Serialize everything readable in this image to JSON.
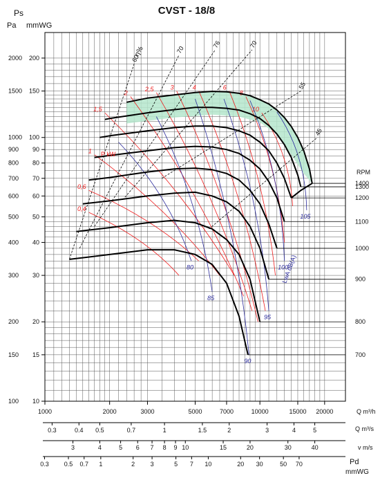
{
  "chart_data": {
    "type": "line",
    "title": "CVST - 18/8",
    "y_units": {
      "ps": "Ps",
      "pa": "Pa",
      "mmwg": "mmWG"
    },
    "y_scale": "log",
    "x_scale": "log",
    "xlim": [
      1000,
      25000
    ],
    "ylim_mmwg": [
      10,
      250
    ],
    "y_ticks_mmwg": [
      "200",
      "150",
      "100",
      "90",
      "80",
      "70",
      "60",
      "50",
      "40",
      "30",
      "20",
      "15",
      "10"
    ],
    "y_ticks_pa": [
      "2000",
      "1500",
      "1000",
      "900",
      "800",
      "700",
      "600",
      "500",
      "400",
      "300",
      "200",
      "150",
      "100"
    ],
    "x_ticks": [
      "1000",
      "2000",
      "3000",
      "5000",
      "7000",
      "10000",
      "15000",
      "20000"
    ],
    "x_unit": "Q m³/h",
    "rpm_label": "RPM",
    "rpm_ticks": [
      "1400",
      "1300",
      "1200",
      "1100",
      "1000",
      "900",
      "800",
      "700"
    ],
    "efficiency_label": "η%",
    "efficiency_values": [
      "60",
      "70",
      "76",
      "70",
      "55",
      "45"
    ],
    "power_label": "P kW",
    "power_values": [
      "0,4",
      "0,6",
      "1",
      "1,5",
      "2",
      "2,5",
      "3",
      "4",
      "6",
      "8",
      "10"
    ],
    "noise_label": "LwA dB(A)",
    "noise_values": [
      "80",
      "85",
      "90",
      "95",
      "100",
      "105"
    ],
    "series": [
      {
        "rpm": 700,
        "points": [
          [
            1300,
            34.5
          ],
          [
            2000,
            36
          ],
          [
            3000,
            37.5
          ],
          [
            4000,
            37.5
          ],
          [
            5000,
            36
          ],
          [
            6000,
            33
          ],
          [
            7000,
            28
          ],
          [
            8000,
            21
          ],
          [
            8800,
            15
          ]
        ]
      },
      {
        "rpm": 800,
        "points": [
          [
            1400,
            44
          ],
          [
            2000,
            45.5
          ],
          [
            3000,
            47.5
          ],
          [
            4000,
            48.5
          ],
          [
            5000,
            47.5
          ],
          [
            6000,
            45
          ],
          [
            7000,
            41
          ],
          [
            8000,
            36
          ],
          [
            9000,
            29
          ],
          [
            10000,
            20
          ]
        ]
      },
      {
        "rpm": 900,
        "points": [
          [
            1500,
            56
          ],
          [
            2000,
            57.5
          ],
          [
            3000,
            60
          ],
          [
            4000,
            61.5
          ],
          [
            5000,
            62
          ],
          [
            6000,
            60
          ],
          [
            7000,
            57
          ],
          [
            8000,
            52.5
          ],
          [
            9000,
            46
          ],
          [
            10000,
            38
          ],
          [
            11000,
            29
          ]
        ]
      },
      {
        "rpm": 1000,
        "points": [
          [
            1600,
            69
          ],
          [
            2000,
            70.5
          ],
          [
            3000,
            74
          ],
          [
            4000,
            76
          ],
          [
            5000,
            76.5
          ],
          [
            6000,
            75.5
          ],
          [
            7000,
            73
          ],
          [
            8000,
            69
          ],
          [
            9000,
            63
          ],
          [
            10000,
            56
          ],
          [
            11000,
            47
          ],
          [
            12000,
            38
          ]
        ]
      },
      {
        "rpm": 1100,
        "points": [
          [
            1700,
            84
          ],
          [
            2000,
            85.5
          ],
          [
            3000,
            89
          ],
          [
            4000,
            91.5
          ],
          [
            5000,
            92.5
          ],
          [
            6000,
            92
          ],
          [
            7000,
            90
          ],
          [
            8000,
            87
          ],
          [
            9000,
            82
          ],
          [
            10000,
            76
          ],
          [
            11000,
            68
          ],
          [
            12000,
            59
          ],
          [
            13000,
            48
          ]
        ]
      },
      {
        "rpm": 1200,
        "points": [
          [
            1800,
            100
          ],
          [
            2000,
            101.5
          ],
          [
            3000,
            106
          ],
          [
            4000,
            109
          ],
          [
            5000,
            110.5
          ],
          [
            6000,
            110.5
          ],
          [
            7000,
            109
          ],
          [
            8000,
            106
          ],
          [
            9000,
            102
          ],
          [
            10000,
            96
          ],
          [
            11000,
            89
          ],
          [
            12000,
            80
          ],
          [
            13000,
            70
          ],
          [
            14000,
            59
          ]
        ]
      },
      {
        "rpm": 1300,
        "points": [
          [
            1900,
            117
          ],
          [
            2000,
            118
          ],
          [
            3000,
            124
          ],
          [
            4000,
            127.5
          ],
          [
            5000,
            130
          ],
          [
            6000,
            130
          ],
          [
            7000,
            129
          ],
          [
            8000,
            127
          ],
          [
            9000,
            123
          ],
          [
            10000,
            118
          ],
          [
            11000,
            111
          ],
          [
            12000,
            103
          ],
          [
            13000,
            94
          ],
          [
            14000,
            84
          ],
          [
            15000,
            72
          ],
          [
            15500,
            65
          ]
        ]
      },
      {
        "rpm": 1400,
        "points": [
          [
            2400,
            136
          ],
          [
            3000,
            141
          ],
          [
            4000,
            145
          ],
          [
            5000,
            148
          ],
          [
            6000,
            149.5
          ],
          [
            7000,
            149
          ],
          [
            8000,
            147
          ],
          [
            9000,
            144
          ],
          [
            10000,
            139
          ],
          [
            11000,
            134
          ],
          [
            12000,
            127
          ],
          [
            13000,
            119
          ],
          [
            14000,
            110
          ],
          [
            15000,
            100
          ],
          [
            16000,
            89
          ],
          [
            17000,
            76
          ],
          [
            17500,
            67
          ]
        ]
      }
    ]
  },
  "velocity_axis": {
    "q_m3s_label": "Q m³/s",
    "q_m3s_ticks": [
      "0.3",
      "0.4",
      "0.5",
      "0.7",
      "1",
      "1.5",
      "2",
      "3",
      "4",
      "5"
    ],
    "v_label": "v m/s",
    "v_ticks": [
      "3",
      "4",
      "5",
      "6",
      "7",
      "8",
      "9",
      "10",
      "15",
      "20",
      "30",
      "40"
    ],
    "pd_label": "Pd",
    "pd_unit": "mmWG",
    "pd_ticks": [
      "0.3",
      "0.5",
      "0.7",
      "1",
      "2",
      "3",
      "5",
      "7",
      "10",
      "20",
      "30",
      "50",
      "70"
    ]
  },
  "colors": {
    "frame": "#000000",
    "grid": "#555555",
    "curve": "#000000",
    "power": "#ee1c1c",
    "noise": "#2b2b9c",
    "optimum_fill": "#b5e6cc",
    "text": "#111111"
  }
}
